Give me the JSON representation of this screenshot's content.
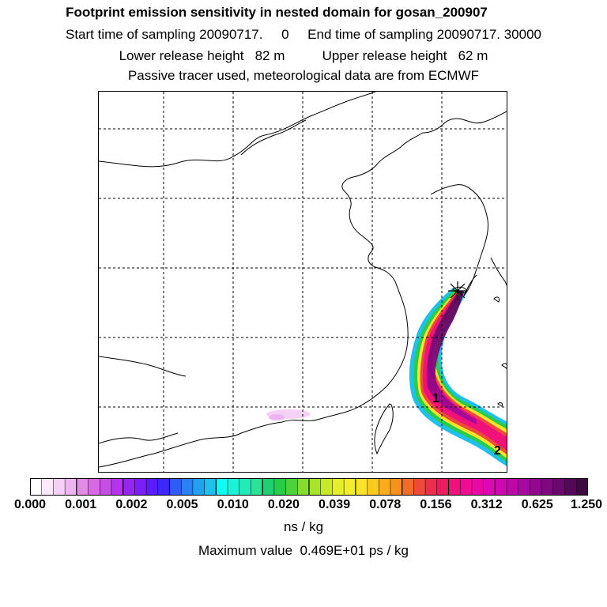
{
  "title": "Footprint emission sensitivity in nested domain for gosan_200907",
  "sampling_line": "Start time of sampling 20090717.     0     End time of sampling 20090717. 30000",
  "release_line": "Lower release height   82 m          Upper release height   62 m",
  "tracer_line": "Passive tracer used, meteorological data are from ECMWF",
  "map": {
    "markers": [
      {
        "label": "1"
      },
      {
        "label": "2"
      }
    ],
    "release_site_icon": "star-cross-icon"
  },
  "colorbar": {
    "labels": [
      "0.000",
      "0.001",
      "0.002",
      "0.005",
      "0.010",
      "0.020",
      "0.039",
      "0.078",
      "0.156",
      "0.312",
      "0.625",
      "1.250"
    ],
    "colors": [
      "#ffffff",
      "#fbe9fb",
      "#f5d2f5",
      "#edb5ef",
      "#e28be6",
      "#d769e3",
      "#c74ee4",
      "#b334ea",
      "#9326ef",
      "#7a20f5",
      "#5a1cf8",
      "#3c28f8",
      "#2f5cf5",
      "#2b80f4",
      "#24a0f1",
      "#20c0ee",
      "#10fbf3",
      "#1cf3d6",
      "#24eab8",
      "#2be298",
      "#1fd070",
      "#26cc4a",
      "#4ed23a",
      "#86dc2e",
      "#a8e42a",
      "#c8e82a",
      "#e4ee2c",
      "#f2ee2e",
      "#fde22a",
      "#fdc81f",
      "#fbac1d",
      "#f7921f",
      "#f26c2a",
      "#ed4a3a",
      "#ec2e4c",
      "#ec1c60",
      "#f0127a",
      "#ee0c92",
      "#e808a6",
      "#dd08b2",
      "#cd08b0",
      "#bc08a8",
      "#a8089e",
      "#940890",
      "#80087e",
      "#6a086c",
      "#560858",
      "#3e0842"
    ]
  },
  "unit_label": "ns / kg",
  "max_value_line": "Maximum value  0.469E+01 ps / kg"
}
